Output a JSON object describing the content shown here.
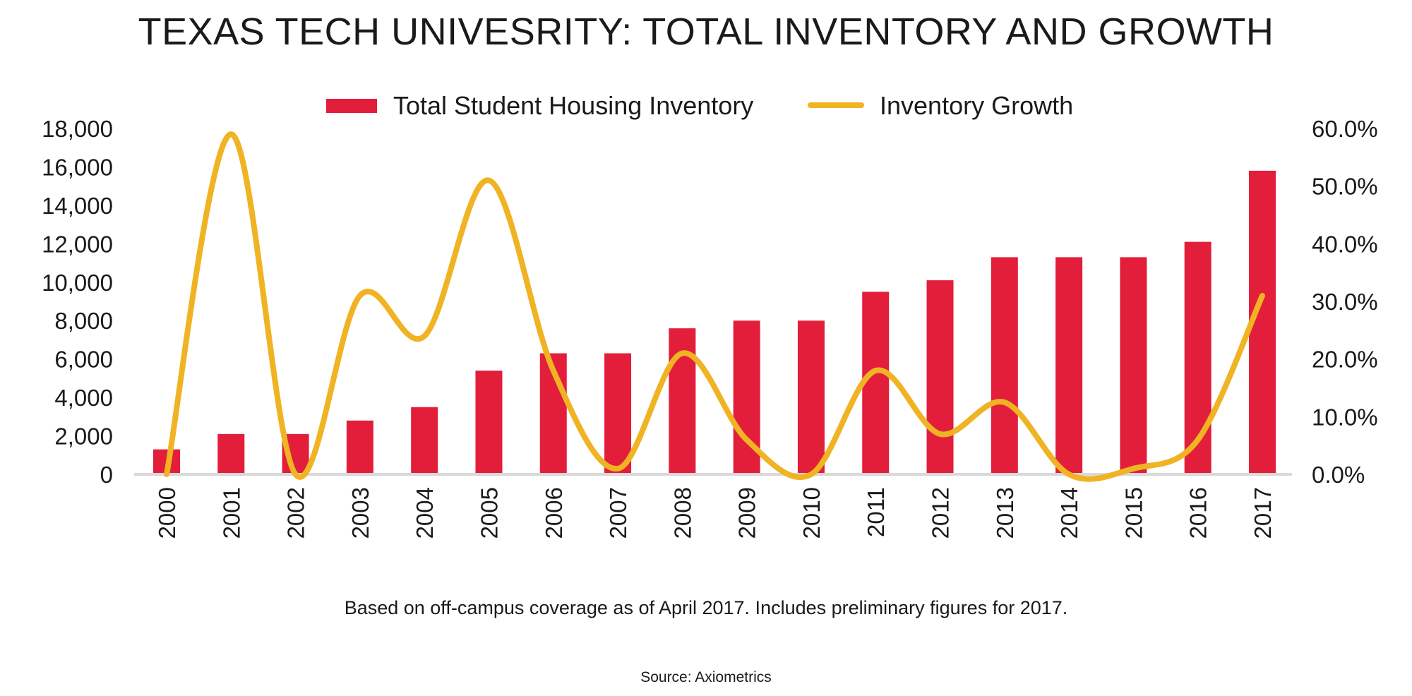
{
  "chart_data": {
    "type": "bar",
    "title": "TEXAS TECH UNIVESRITY: TOTAL INVENTORY AND GROWTH",
    "categories": [
      "2000",
      "2001",
      "2002",
      "2003",
      "2004",
      "2005",
      "2006",
      "2007",
      "2008",
      "2009",
      "2010",
      "2011",
      "2012",
      "2013",
      "2014",
      "2015",
      "2016",
      "2017"
    ],
    "series": [
      {
        "name": "Total Student Housing Inventory",
        "type": "bar",
        "axis": "left",
        "color": "#e31e3b",
        "values": [
          1300,
          2100,
          2100,
          2800,
          3500,
          5400,
          6300,
          6300,
          7600,
          8000,
          8000,
          9500,
          10100,
          11300,
          11300,
          11300,
          12100,
          15800
        ]
      },
      {
        "name": "Inventory Growth",
        "type": "line",
        "axis": "right",
        "color": "#f0b323",
        "values": [
          0.0,
          59.0,
          0.0,
          31.0,
          24.0,
          51.0,
          18.0,
          1.0,
          21.0,
          6.0,
          0.0,
          18.0,
          7.0,
          12.5,
          0.0,
          1.0,
          6.0,
          31.0
        ]
      }
    ],
    "y_left": {
      "ylim": [
        0,
        18000
      ],
      "ticks": [
        "18,000",
        "16,000",
        "14,000",
        "12,000",
        "10,000",
        "8,000",
        "6,000",
        "4,000",
        "2,000",
        "0"
      ]
    },
    "y_right": {
      "ylim": [
        0,
        60
      ],
      "ticks": [
        "60.0%",
        "50.0%",
        "40.0%",
        "30.0%",
        "20.0%",
        "10.0%",
        "0.0%"
      ]
    },
    "legend_position": "top",
    "grid": false,
    "footnote": "Based on off-campus coverage as of April 2017. Includes preliminary figures for 2017.",
    "source": "Source: Axiometrics"
  }
}
